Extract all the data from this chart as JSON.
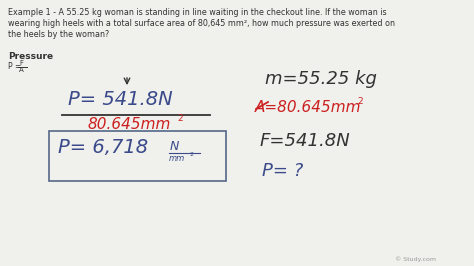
{
  "bg_color": "#f0f0ec",
  "title_text_line1": "Example 1 - A 55.25 kg woman is standing in line waiting in the checkout line. If the woman is",
  "title_text_line2": "wearing high heels with a total surface area of 80,645 mm², how much pressure was exerted on",
  "title_text_line3": "the heels by the woman?",
  "navy": "#3a4a8a",
  "red": "#cc2020",
  "dark": "#333333",
  "gray": "#aaaaaa",
  "blue_p": "#2a5090"
}
